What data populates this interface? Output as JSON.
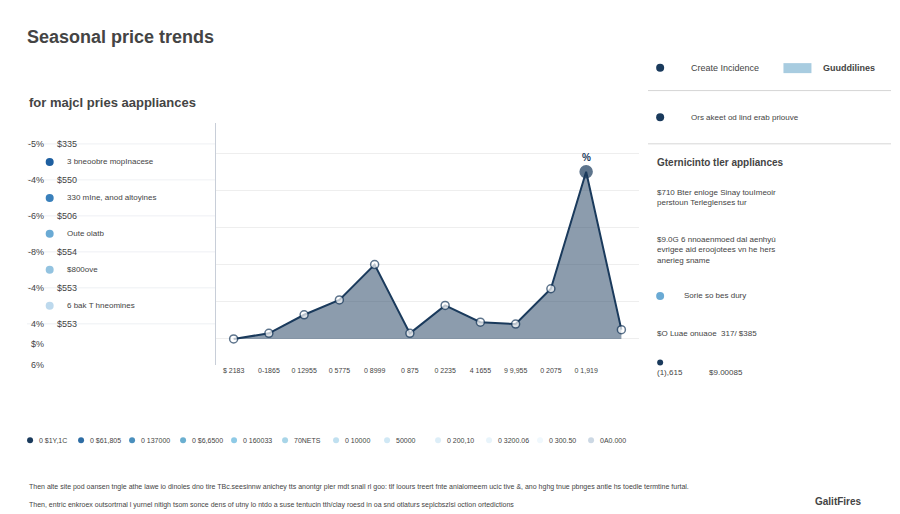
{
  "chart_data": {
    "type": "line",
    "title": "Seasonal price trends",
    "subtitle": "for majcl pries aappliances",
    "categories": [
      "$ 2183",
      "0-1865",
      "0 12955",
      "0 5775",
      "0 8999",
      "0 875",
      "0 2235",
      "4 1655",
      "9 9,955",
      "0 2075",
      "0 1,919",
      null
    ],
    "values": [
      0.0,
      0.15,
      0.65,
      1.05,
      2.0,
      0.15,
      0.9,
      0.45,
      0.4,
      1.35,
      4.5,
      0.25
    ],
    "color": "#1a3a5c",
    "marker": "circle",
    "ylim": [
      -0.7,
      5.8
    ],
    "yticks": [
      0,
      1,
      2,
      3,
      4,
      5
    ],
    "grid": true,
    "tick_labels": "x",
    "annotations": [
      {
        "text": "%",
        "x": 10
      },
      {
        "text": "-5%"
      },
      {
        "text": "$335"
      },
      {
        "text": "-4%"
      },
      {
        "text": "$550"
      },
      {
        "text": "-6%"
      },
      {
        "text": "$506"
      },
      {
        "text": "-8%"
      },
      {
        "text": "$554"
      },
      {
        "text": "-4%"
      },
      {
        "text": "$553"
      },
      {
        "text": "4%"
      },
      {
        "text": "$553"
      },
      {
        "text": "3 bneoobre mopInacese",
        "color": "#1e5fa0"
      },
      {
        "text": "330 mIne, anod altoyines",
        "color": "#3a80bb"
      },
      {
        "text": "Oute olatb",
        "color": "#6aaad4"
      },
      {
        "text": "$800ove",
        "color": "#93c3e0"
      },
      {
        "text": "6 bak T hneomines",
        "color": "#bdd9ed"
      },
      {
        "text": "$%"
      },
      {
        "text": "6%"
      },
      {
        "text": "Create Incidence",
        "color": "#1a3a5c"
      },
      {
        "text": "Guuddilines",
        "color": "#a8cce0",
        "marker": "square"
      },
      {
        "text": "Ors akeet od lind erab priouve",
        "color": "#1a3a5c"
      },
      {
        "text": "Gternicinto tler appliances"
      },
      {
        "text": "$710 Bter enloge Sinay touImeoir\nperstoun Terleglenses tur"
      },
      {
        "text": "$9.0G 6 nnoaenmoed dal aenhyù\nevrigee aid eroojotees vn he hers\nanerieg sname"
      },
      {
        "text": "Sorie so bes dury",
        "color": "#6aaad4"
      },
      {
        "text": "$O Luae onuaoe  317/ $385"
      },
      {
        "text": "(1),615            $9.00085",
        "color": "#1a3a5c"
      },
      {
        "text": "0 $1Y,1C",
        "color": "#1a3a5c"
      },
      {
        "text": "0 $61,805",
        "color": "#2e6da4"
      },
      {
        "text": "0 137000",
        "color": "#4a8fbd"
      },
      {
        "text": "0 $6,6500",
        "color": "#6aafd0"
      },
      {
        "text": "0 160033",
        "color": "#8ecae6"
      },
      {
        "text": "70NETS",
        "color": "#a8d5e8"
      },
      {
        "text": "0 10000",
        "color": "#c0e0f0"
      },
      {
        "text": "50000",
        "color": "#d0e8f5"
      },
      {
        "text": "0 200,10",
        "color": "#ddeef8"
      },
      {
        "text": "0 3200.06",
        "color": "#e8f4fb"
      },
      {
        "text": "0 300.50",
        "color": "#f0f8fd"
      },
      {
        "text": "0A0.000",
        "color": "#ccd8e4"
      },
      {
        "text": "Then alte site pod oansen tngle athe lawe io dinoles dno tire TBc.seesinnw anichey tts anontgr pler mdt snall rl goo: tlf loours treert fnte anialomeem ucic tive &, ano hghg tnue pbnges antle hs toedle termtine furtal."
      },
      {
        "text": "Then, entric enkroex outsortrnal l yurnel nitigh tsom sonce dens of utny lo ntdo a suse tentucin tth/clay roesd in oa snd otlaturs seplcbszlsi oction ortedictions"
      },
      {
        "text": "GalitFires"
      }
    ]
  }
}
